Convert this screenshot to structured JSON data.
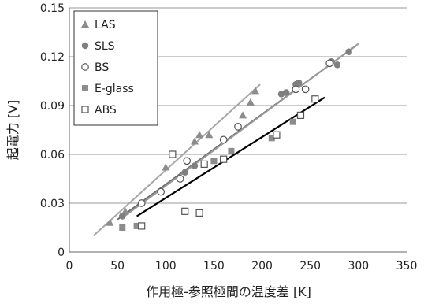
{
  "chart_data": {
    "type": "scatter",
    "xlabel": "作用極-参照極間の温度差 [K]",
    "ylabel": "起電力 [V]",
    "xlim": [
      0,
      350
    ],
    "ylim": [
      0,
      0.15
    ],
    "xticks": [
      "0",
      "50",
      "100",
      "150",
      "200",
      "250",
      "300",
      "350"
    ],
    "yticks": [
      "0",
      "0.03",
      "0.06",
      "0.09",
      "0.12",
      "0.15"
    ],
    "grid": "horizontal",
    "legend_position": "top-left",
    "series": [
      {
        "name": "LAS",
        "marker": "triangle",
        "color": "#8c8c8c",
        "points": [
          [
            42,
            0.018
          ],
          [
            58,
            0.025
          ],
          [
            100,
            0.052
          ],
          [
            130,
            0.068
          ],
          [
            135,
            0.072
          ],
          [
            145,
            0.072
          ],
          [
            180,
            0.084
          ],
          [
            188,
            0.092
          ],
          [
            193,
            0.099
          ]
        ],
        "fit": [
          [
            25,
            0.01
          ],
          [
            198,
            0.103
          ]
        ]
      },
      {
        "name": "SLS",
        "marker": "circle-filled",
        "color": "#7f7f7f",
        "points": [
          [
            55,
            0.022
          ],
          [
            120,
            0.049
          ],
          [
            130,
            0.053
          ],
          [
            220,
            0.097
          ],
          [
            225,
            0.098
          ],
          [
            235,
            0.103
          ],
          [
            238,
            0.104
          ],
          [
            272,
            0.117
          ],
          [
            278,
            0.115
          ],
          [
            290,
            0.123
          ]
        ],
        "fit": [
          [
            50,
            0.02
          ],
          [
            298,
            0.127
          ]
        ]
      },
      {
        "name": "BS",
        "marker": "circle-open",
        "color": "#555555",
        "points": [
          [
            75,
            0.03
          ],
          [
            95,
            0.037
          ],
          [
            115,
            0.045
          ],
          [
            122,
            0.056
          ],
          [
            160,
            0.069
          ],
          [
            175,
            0.077
          ],
          [
            235,
            0.1
          ],
          [
            245,
            0.1
          ],
          [
            270,
            0.116
          ]
        ],
        "fit": [
          [
            55,
            0.021
          ],
          [
            300,
            0.128
          ]
        ]
      },
      {
        "name": "E-glass",
        "marker": "square-filled",
        "color": "#8c8c8c",
        "points": [
          [
            55,
            0.015
          ],
          [
            70,
            0.016
          ],
          [
            150,
            0.056
          ],
          [
            168,
            0.062
          ],
          [
            210,
            0.07
          ],
          [
            232,
            0.08
          ],
          [
            240,
            0.084
          ]
        ],
        "fit": []
      },
      {
        "name": "ABS",
        "marker": "square-open",
        "color": "#555555",
        "points": [
          [
            75,
            0.016
          ],
          [
            107,
            0.06
          ],
          [
            120,
            0.025
          ],
          [
            135,
            0.024
          ],
          [
            140,
            0.054
          ],
          [
            160,
            0.057
          ],
          [
            215,
            0.072
          ],
          [
            240,
            0.084
          ],
          [
            255,
            0.094
          ]
        ],
        "fit": [
          [
            70,
            0.022
          ],
          [
            265,
            0.095
          ]
        ]
      }
    ],
    "fit_colors": {
      "LAS": "#a6a6a6",
      "SLS": "#6e6e6e",
      "BS": "#9a9a9a",
      "ABS": "#000000"
    }
  }
}
